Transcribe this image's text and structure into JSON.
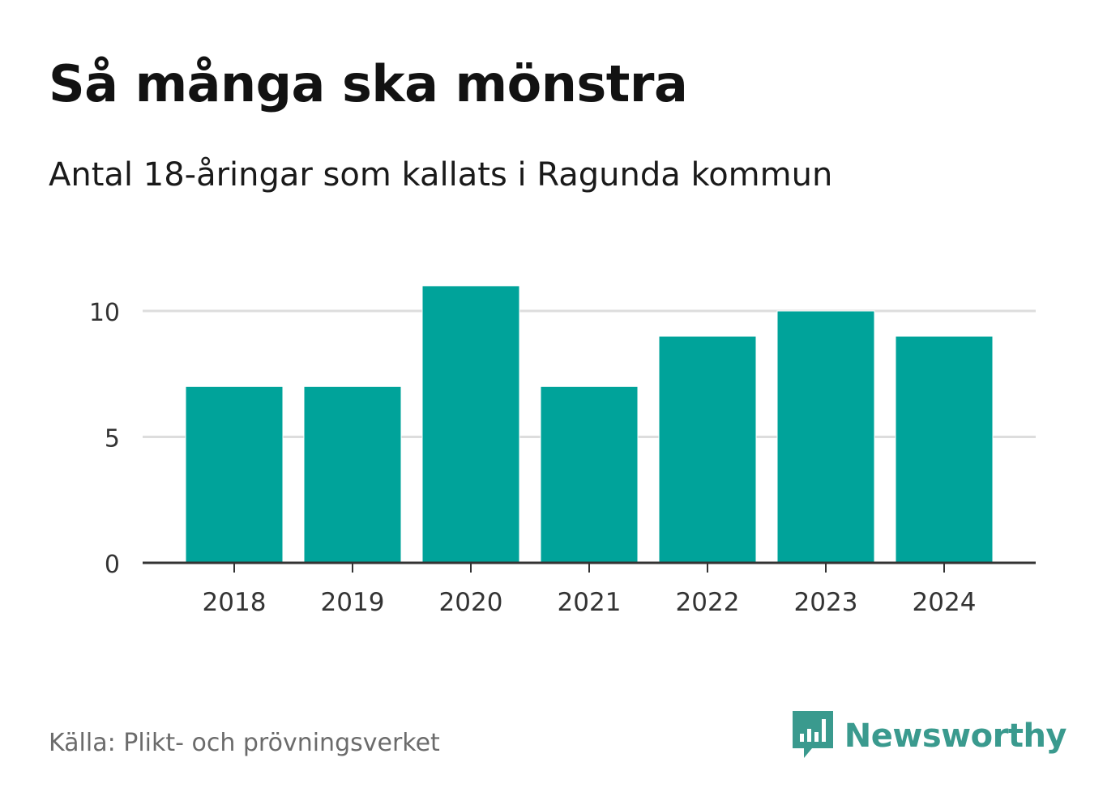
{
  "header": {
    "title": "Så många ska mönstra",
    "subtitle": "Antal 18-åringar som kallats i Ragunda kommun"
  },
  "footer": {
    "source": "Källa: Plikt- och prövningsverket",
    "brand": "Newsworthy"
  },
  "colors": {
    "bar": "#00a39a",
    "grid": "#dddddd",
    "axis": "#333333",
    "brand": "#3a9a8e"
  },
  "icons": {
    "brand_logo": "bar-chart-speech-bubble-icon"
  },
  "chart_data": {
    "type": "bar",
    "categories": [
      "2018",
      "2019",
      "2020",
      "2021",
      "2022",
      "2023",
      "2024"
    ],
    "values": [
      7,
      7,
      11,
      7,
      9,
      10,
      9
    ],
    "xlabel": "",
    "ylabel": "",
    "ylim": [
      0,
      11.5
    ],
    "yticks": [
      0,
      5,
      10
    ],
    "grid": true,
    "legend": "none"
  }
}
